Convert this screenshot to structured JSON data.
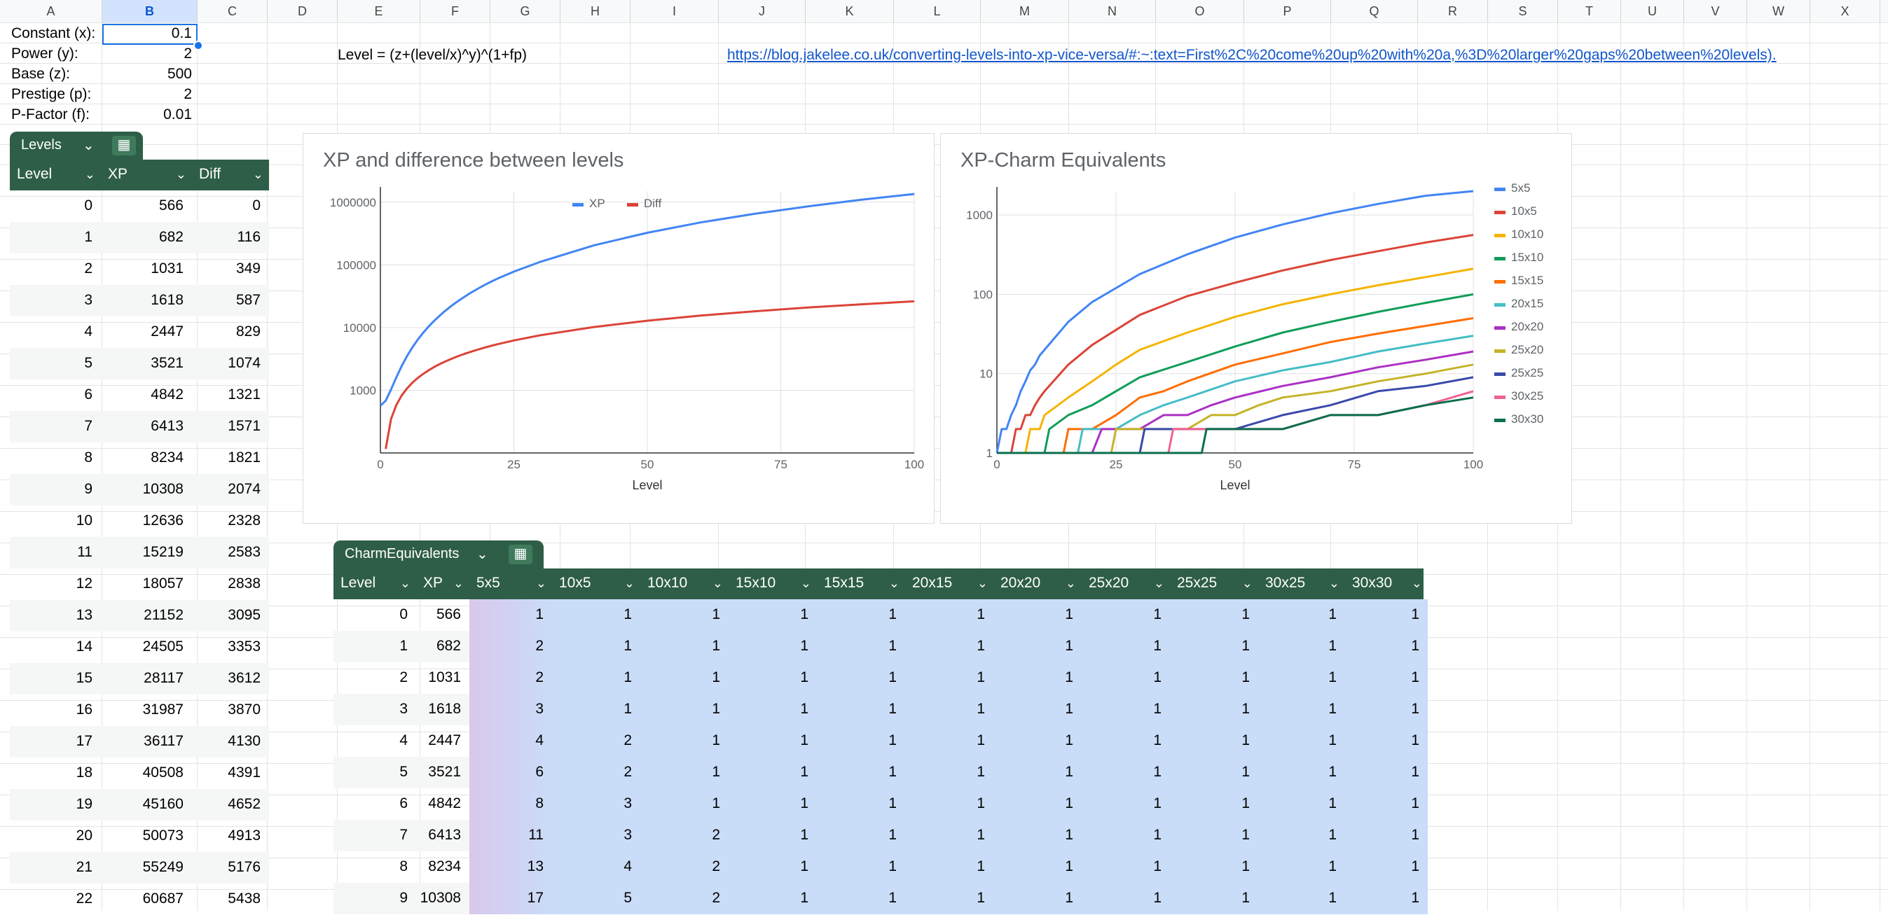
{
  "columns": [
    "A",
    "B",
    "C",
    "D",
    "E",
    "F",
    "G",
    "H",
    "I",
    "J",
    "K",
    "L",
    "M",
    "N",
    "O",
    "P",
    "Q",
    "R",
    "S",
    "T",
    "U",
    "V",
    "W",
    "X"
  ],
  "selected_column": "B",
  "params": [
    {
      "label": "Constant (x):",
      "value": "0.1"
    },
    {
      "label": "Power (y):",
      "value": "2"
    },
    {
      "label": "Base (z):",
      "value": "500"
    },
    {
      "label": "Prestige (p):",
      "value": "2"
    },
    {
      "label": "P-Factor (f):",
      "value": "0.01"
    }
  ],
  "formula_text": "Level = (z+(level/x)^y)^(1+fp)",
  "link_text": "https://blog.jakelee.co.uk/converting-levels-into-xp-vice-versa/#:~:text=First%2C%20come%20up%20with%20a,%3D%20larger%20gaps%20between%20levels).",
  "levels_table": {
    "name": "Levels",
    "headers": [
      "Level",
      "XP",
      "Diff"
    ],
    "rows": [
      [
        "0",
        "566",
        "0"
      ],
      [
        "1",
        "682",
        "116"
      ],
      [
        "2",
        "1031",
        "349"
      ],
      [
        "3",
        "1618",
        "587"
      ],
      [
        "4",
        "2447",
        "829"
      ],
      [
        "5",
        "3521",
        "1074"
      ],
      [
        "6",
        "4842",
        "1321"
      ],
      [
        "7",
        "6413",
        "1571"
      ],
      [
        "8",
        "8234",
        "1821"
      ],
      [
        "9",
        "10308",
        "2074"
      ],
      [
        "10",
        "12636",
        "2328"
      ],
      [
        "11",
        "15219",
        "2583"
      ],
      [
        "12",
        "18057",
        "2838"
      ],
      [
        "13",
        "21152",
        "3095"
      ],
      [
        "14",
        "24505",
        "3353"
      ],
      [
        "15",
        "28117",
        "3612"
      ],
      [
        "16",
        "31987",
        "3870"
      ],
      [
        "17",
        "36117",
        "4130"
      ],
      [
        "18",
        "40508",
        "4391"
      ],
      [
        "19",
        "45160",
        "4652"
      ],
      [
        "20",
        "50073",
        "4913"
      ],
      [
        "21",
        "55249",
        "5176"
      ],
      [
        "22",
        "60687",
        "5438"
      ]
    ]
  },
  "charm_table": {
    "name": "CharmEquivalents",
    "headers": [
      "Level",
      "XP",
      "5x5",
      "10x5",
      "10x10",
      "15x10",
      "15x15",
      "20x15",
      "20x20",
      "25x20",
      "25x25",
      "30x25",
      "30x30"
    ],
    "rows": [
      [
        "0",
        "566",
        "1",
        "1",
        "1",
        "1",
        "1",
        "1",
        "1",
        "1",
        "1",
        "1",
        "1"
      ],
      [
        "1",
        "682",
        "2",
        "1",
        "1",
        "1",
        "1",
        "1",
        "1",
        "1",
        "1",
        "1",
        "1"
      ],
      [
        "2",
        "1031",
        "2",
        "1",
        "1",
        "1",
        "1",
        "1",
        "1",
        "1",
        "1",
        "1",
        "1"
      ],
      [
        "3",
        "1618",
        "3",
        "1",
        "1",
        "1",
        "1",
        "1",
        "1",
        "1",
        "1",
        "1",
        "1"
      ],
      [
        "4",
        "2447",
        "4",
        "2",
        "1",
        "1",
        "1",
        "1",
        "1",
        "1",
        "1",
        "1",
        "1"
      ],
      [
        "5",
        "3521",
        "6",
        "2",
        "1",
        "1",
        "1",
        "1",
        "1",
        "1",
        "1",
        "1",
        "1"
      ],
      [
        "6",
        "4842",
        "8",
        "3",
        "1",
        "1",
        "1",
        "1",
        "1",
        "1",
        "1",
        "1",
        "1"
      ],
      [
        "7",
        "6413",
        "11",
        "3",
        "2",
        "1",
        "1",
        "1",
        "1",
        "1",
        "1",
        "1",
        "1"
      ],
      [
        "8",
        "8234",
        "13",
        "4",
        "2",
        "1",
        "1",
        "1",
        "1",
        "1",
        "1",
        "1",
        "1"
      ],
      [
        "9",
        "10308",
        "17",
        "5",
        "2",
        "1",
        "1",
        "1",
        "1",
        "1",
        "1",
        "1",
        "1"
      ]
    ]
  },
  "colors": {
    "table_header": "#2e5e47",
    "selection": "#1a73e8",
    "cell_fill": "#c9dcf8"
  },
  "icons": {
    "chip_chevron": "chevron-down-icon",
    "chip_calc": "calculator-icon"
  },
  "chart_data": [
    {
      "type": "line",
      "title": "XP and difference between levels",
      "xlabel": "Level",
      "ylabel": "",
      "xlim": [
        0,
        100
      ],
      "yscale": "log",
      "ylim": [
        100,
        1500000
      ],
      "x_ticks": [
        "0",
        "25",
        "50",
        "75",
        "100"
      ],
      "y_ticks": [
        "1000",
        "10000",
        "100000",
        "1000000"
      ],
      "legend_position": "top",
      "series": [
        {
          "name": "XP",
          "color": "#4285f4",
          "x": [
            0,
            1,
            2,
            3,
            4,
            5,
            6,
            7,
            8,
            9,
            10,
            11,
            12,
            13,
            14,
            15,
            16,
            17,
            18,
            19,
            20,
            21,
            22,
            25,
            30,
            40,
            50,
            60,
            70,
            80,
            90,
            100
          ],
          "values": [
            566,
            682,
            1031,
            1618,
            2447,
            3521,
            4842,
            6413,
            8234,
            10308,
            12636,
            15219,
            18057,
            21152,
            24505,
            28117,
            31987,
            36117,
            40508,
            45160,
            50073,
            55249,
            60687,
            78000,
            112000,
            205000,
            325000,
            475000,
            650000,
            855000,
            1090000,
            1350000
          ]
        },
        {
          "name": "Diff",
          "color": "#db4437",
          "x": [
            1,
            2,
            3,
            4,
            5,
            6,
            7,
            8,
            9,
            10,
            11,
            12,
            13,
            14,
            15,
            16,
            17,
            18,
            19,
            20,
            21,
            22,
            25,
            30,
            40,
            50,
            60,
            70,
            80,
            90,
            100
          ],
          "values": [
            116,
            349,
            587,
            829,
            1074,
            1321,
            1571,
            1821,
            2074,
            2328,
            2583,
            2838,
            3095,
            3353,
            3612,
            3870,
            4130,
            4391,
            4652,
            4913,
            5176,
            5438,
            6230,
            7550,
            10200,
            12850,
            15500,
            18150,
            20850,
            23500,
            26200
          ]
        }
      ]
    },
    {
      "type": "line",
      "title": "XP-Charm Equivalents",
      "xlabel": "Level",
      "ylabel": "",
      "xlim": [
        0,
        100
      ],
      "yscale": "log",
      "ylim": [
        1,
        2000
      ],
      "x_ticks": [
        "0",
        "25",
        "50",
        "75",
        "100"
      ],
      "y_ticks": [
        "1",
        "10",
        "100",
        "1000"
      ],
      "legend_position": "right",
      "series": [
        {
          "name": "5x5",
          "color": "#4285f4",
          "x": [
            0,
            1,
            2,
            3,
            4,
            5,
            6,
            7,
            8,
            9,
            10,
            15,
            20,
            30,
            40,
            50,
            60,
            70,
            80,
            90,
            100
          ],
          "values": [
            1,
            2,
            2,
            3,
            4,
            6,
            8,
            11,
            13,
            17,
            20,
            45,
            80,
            180,
            320,
            520,
            760,
            1050,
            1380,
            1750,
            2000
          ]
        },
        {
          "name": "10x5",
          "color": "#db4437",
          "x": [
            0,
            3,
            4,
            5,
            6,
            7,
            8,
            9,
            10,
            15,
            20,
            30,
            40,
            50,
            60,
            70,
            80,
            90,
            100
          ],
          "values": [
            1,
            1,
            2,
            2,
            3,
            3,
            4,
            5,
            6,
            13,
            23,
            55,
            95,
            140,
            200,
            270,
            350,
            450,
            560
          ]
        },
        {
          "name": "10x10",
          "color": "#f4b400",
          "x": [
            0,
            6,
            7,
            8,
            9,
            10,
            15,
            20,
            25,
            30,
            40,
            50,
            60,
            70,
            80,
            90,
            100
          ],
          "values": [
            1,
            1,
            2,
            2,
            2,
            3,
            5,
            8,
            13,
            20,
            33,
            52,
            75,
            100,
            130,
            165,
            210
          ]
        },
        {
          "name": "15x10",
          "color": "#0f9d58",
          "x": [
            0,
            10,
            11,
            15,
            20,
            25,
            30,
            40,
            50,
            60,
            70,
            80,
            90,
            100
          ],
          "values": [
            1,
            1,
            2,
            3,
            4,
            6,
            9,
            14,
            22,
            33,
            45,
            60,
            78,
            100
          ]
        },
        {
          "name": "15x15",
          "color": "#ff6d01",
          "x": [
            0,
            14,
            15,
            20,
            25,
            30,
            35,
            40,
            50,
            60,
            70,
            80,
            90,
            100
          ],
          "values": [
            1,
            1,
            2,
            2,
            3,
            5,
            6,
            8,
            13,
            18,
            25,
            32,
            40,
            50
          ]
        },
        {
          "name": "20x15",
          "color": "#46bdc6",
          "x": [
            0,
            17,
            18,
            25,
            30,
            35,
            40,
            50,
            60,
            70,
            80,
            90,
            100
          ],
          "values": [
            1,
            1,
            2,
            2,
            3,
            4,
            5,
            8,
            11,
            14,
            19,
            24,
            30
          ]
        },
        {
          "name": "20x20",
          "color": "#ab30c4",
          "x": [
            0,
            20,
            22,
            25,
            30,
            35,
            40,
            45,
            50,
            60,
            70,
            80,
            90,
            100
          ],
          "values": [
            1,
            1,
            2,
            2,
            2,
            3,
            3,
            4,
            5,
            7,
            9,
            12,
            15,
            19
          ]
        },
        {
          "name": "25x20",
          "color": "#c5b327",
          "x": [
            0,
            24,
            25,
            30,
            35,
            40,
            45,
            50,
            55,
            60,
            70,
            80,
            90,
            100
          ],
          "values": [
            1,
            1,
            2,
            2,
            2,
            2,
            3,
            3,
            4,
            5,
            6,
            8,
            10,
            13
          ]
        },
        {
          "name": "25x25",
          "color": "#3949ab",
          "x": [
            0,
            30,
            31,
            40,
            45,
            50,
            60,
            70,
            80,
            90,
            100
          ],
          "values": [
            1,
            1,
            2,
            2,
            2,
            2,
            3,
            4,
            6,
            7,
            9
          ]
        },
        {
          "name": "30x25",
          "color": "#f06292",
          "x": [
            0,
            36,
            37,
            45,
            50,
            60,
            70,
            80,
            90,
            100
          ],
          "values": [
            1,
            1,
            2,
            2,
            2,
            2,
            3,
            3,
            4,
            6
          ]
        },
        {
          "name": "30x30",
          "color": "#0b6e4f",
          "x": [
            0,
            43,
            44,
            50,
            60,
            70,
            75,
            80,
            90,
            100
          ],
          "values": [
            1,
            1,
            2,
            2,
            2,
            3,
            3,
            3,
            4,
            5
          ]
        }
      ]
    }
  ]
}
